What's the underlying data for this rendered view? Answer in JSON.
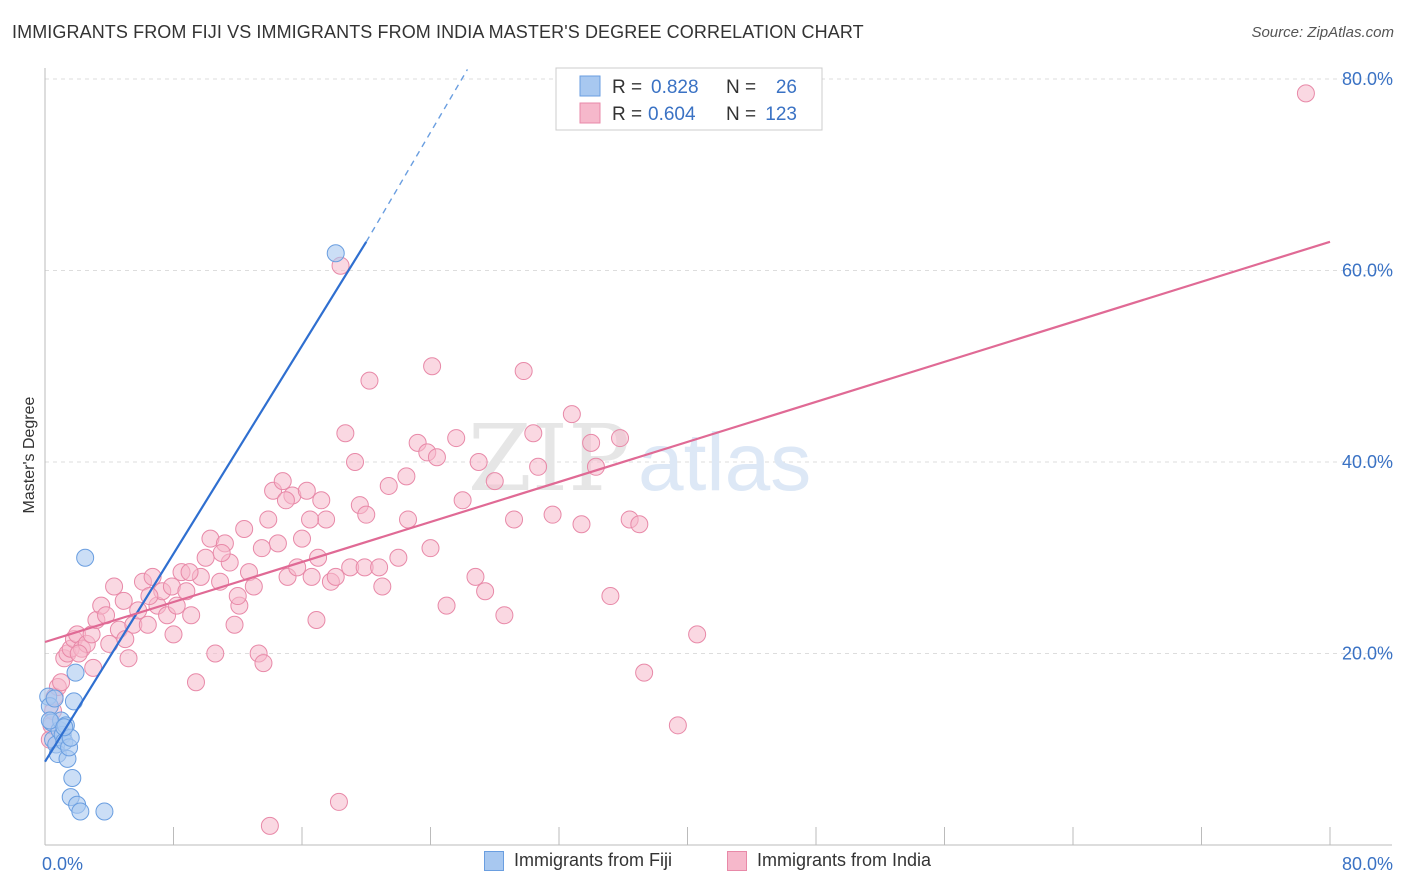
{
  "title": "IMMIGRANTS FROM FIJI VS IMMIGRANTS FROM INDIA MASTER'S DEGREE CORRELATION CHART",
  "source": "Source: ZipAtlas.com",
  "watermark": {
    "part1": "ZIP",
    "part2": "atlas"
  },
  "colors": {
    "fiji_fill": "#a8c8f0",
    "fiji_stroke": "#6a9ee0",
    "fiji_line": "#2f6fd0",
    "india_fill": "#f6b8cb",
    "india_stroke": "#e889a8",
    "india_line": "#e06a95",
    "value_text": "#3a72c4",
    "grid": "#dddddd"
  },
  "legend": {
    "rows": [
      {
        "r_label": "R =",
        "r_value": "0.828",
        "n_label": "N =",
        "n_value": "26",
        "series": "fiji"
      },
      {
        "r_label": "R =",
        "r_value": "0.604",
        "n_label": "N =",
        "n_value": "123",
        "series": "india"
      }
    ]
  },
  "chart_data": {
    "type": "scatter",
    "title": "IMMIGRANTS FROM FIJI VS IMMIGRANTS FROM INDIA MASTER'S DEGREE CORRELATION CHART",
    "xlabel": "",
    "ylabel": "Master's Degree",
    "xlim": [
      0,
      80
    ],
    "ylim": [
      0,
      80
    ],
    "x_tick_labels": [
      "0.0%",
      "80.0%"
    ],
    "y_ticks": [
      20,
      40,
      60,
      80
    ],
    "y_tick_labels": [
      "20.0%",
      "40.0%",
      "60.0%",
      "80.0%"
    ],
    "grid": true,
    "legend_position": "top-center",
    "series": [
      {
        "name": "Immigrants from Fiji",
        "key": "fiji",
        "r": 0.828,
        "n": 26,
        "trend": {
          "x": [
            0,
            20.0
          ],
          "y": [
            8.7,
            63.0
          ],
          "dashed_to": [
            26.3,
            81.0
          ]
        },
        "points": [
          [
            0.2,
            15.5
          ],
          [
            0.3,
            14.5
          ],
          [
            0.4,
            12.8
          ],
          [
            0.5,
            11.0
          ],
          [
            0.6,
            15.3
          ],
          [
            0.7,
            10.5
          ],
          [
            0.8,
            9.5
          ],
          [
            0.9,
            12.0
          ],
          [
            1.0,
            13.0
          ],
          [
            1.1,
            11.5
          ],
          [
            1.2,
            10.8
          ],
          [
            1.3,
            12.5
          ],
          [
            1.4,
            9.0
          ],
          [
            1.5,
            10.2
          ],
          [
            1.6,
            11.2
          ],
          [
            1.7,
            7.0
          ],
          [
            1.8,
            15.0
          ],
          [
            1.9,
            18.0
          ],
          [
            1.6,
            5.0
          ],
          [
            2.0,
            4.2
          ],
          [
            2.2,
            3.5
          ],
          [
            2.5,
            30.0
          ],
          [
            3.7,
            3.5
          ],
          [
            18.1,
            61.8
          ],
          [
            0.3,
            13.0
          ],
          [
            1.2,
            12.3
          ]
        ]
      },
      {
        "name": "Immigrants from India",
        "key": "india",
        "r": 0.604,
        "n": 123,
        "trend": {
          "x": [
            0,
            80.0
          ],
          "y": [
            21.2,
            63.0
          ]
        },
        "points": [
          [
            0.3,
            11.0
          ],
          [
            0.4,
            12.5
          ],
          [
            0.5,
            14.0
          ],
          [
            0.6,
            15.5
          ],
          [
            0.8,
            16.5
          ],
          [
            1.0,
            17.0
          ],
          [
            1.2,
            19.5
          ],
          [
            1.4,
            20.0
          ],
          [
            1.6,
            20.5
          ],
          [
            1.8,
            21.5
          ],
          [
            2.0,
            22.0
          ],
          [
            2.3,
            20.5
          ],
          [
            2.6,
            21.0
          ],
          [
            2.9,
            22.0
          ],
          [
            3.2,
            23.5
          ],
          [
            3.5,
            25.0
          ],
          [
            3.8,
            24.0
          ],
          [
            4.0,
            21.0
          ],
          [
            4.3,
            27.0
          ],
          [
            4.6,
            22.5
          ],
          [
            4.9,
            25.5
          ],
          [
            5.2,
            19.5
          ],
          [
            5.5,
            23.0
          ],
          [
            5.8,
            24.5
          ],
          [
            6.1,
            27.5
          ],
          [
            6.4,
            23.0
          ],
          [
            6.7,
            28.0
          ],
          [
            7.0,
            25.0
          ],
          [
            7.3,
            26.5
          ],
          [
            7.6,
            24.0
          ],
          [
            7.9,
            27.0
          ],
          [
            8.2,
            25.0
          ],
          [
            8.5,
            28.5
          ],
          [
            8.8,
            26.5
          ],
          [
            9.1,
            24.0
          ],
          [
            9.4,
            17.0
          ],
          [
            9.7,
            28.0
          ],
          [
            10.0,
            30.0
          ],
          [
            10.3,
            32.0
          ],
          [
            10.6,
            20.0
          ],
          [
            10.9,
            27.5
          ],
          [
            11.2,
            31.5
          ],
          [
            11.5,
            29.5
          ],
          [
            11.8,
            23.0
          ],
          [
            12.1,
            25.0
          ],
          [
            12.4,
            33.0
          ],
          [
            12.7,
            28.5
          ],
          [
            13.0,
            27.0
          ],
          [
            13.3,
            20.0
          ],
          [
            13.6,
            19.0
          ],
          [
            13.9,
            34.0
          ],
          [
            14.2,
            37.0
          ],
          [
            14.5,
            31.5
          ],
          [
            14.8,
            38.0
          ],
          [
            15.1,
            28.0
          ],
          [
            15.4,
            36.5
          ],
          [
            15.7,
            29.0
          ],
          [
            16.0,
            32.0
          ],
          [
            16.3,
            37.0
          ],
          [
            16.6,
            28.0
          ],
          [
            16.9,
            23.5
          ],
          [
            17.2,
            36.0
          ],
          [
            17.5,
            34.0
          ],
          [
            17.8,
            27.5
          ],
          [
            18.1,
            28.0
          ],
          [
            18.4,
            60.5
          ],
          [
            18.7,
            43.0
          ],
          [
            19.0,
            29.0
          ],
          [
            19.3,
            40.0
          ],
          [
            19.6,
            35.5
          ],
          [
            19.9,
            29.0
          ],
          [
            20.2,
            48.5
          ],
          [
            20.8,
            29.0
          ],
          [
            21.4,
            37.5
          ],
          [
            22.0,
            30.0
          ],
          [
            22.6,
            34.0
          ],
          [
            23.2,
            42.0
          ],
          [
            23.8,
            41.0
          ],
          [
            24.1,
            50.0
          ],
          [
            24.4,
            40.5
          ],
          [
            25.0,
            25.0
          ],
          [
            25.6,
            42.5
          ],
          [
            26.8,
            28.0
          ],
          [
            27.4,
            26.5
          ],
          [
            28.6,
            24.0
          ],
          [
            29.2,
            34.0
          ],
          [
            29.8,
            49.5
          ],
          [
            30.4,
            43.0
          ],
          [
            30.7,
            39.5
          ],
          [
            31.6,
            34.5
          ],
          [
            32.8,
            45.0
          ],
          [
            33.4,
            33.5
          ],
          [
            34.0,
            42.0
          ],
          [
            34.3,
            39.5
          ],
          [
            35.2,
            26.0
          ],
          [
            35.8,
            42.5
          ],
          [
            36.4,
            34.0
          ],
          [
            37.0,
            33.5
          ],
          [
            37.3,
            18.0
          ],
          [
            39.4,
            12.5
          ],
          [
            40.6,
            22.0
          ],
          [
            78.5,
            78.5
          ],
          [
            14.0,
            2.0
          ],
          [
            18.3,
            4.5
          ],
          [
            2.1,
            20.0
          ],
          [
            3.0,
            18.5
          ],
          [
            5.0,
            21.5
          ],
          [
            6.5,
            26.0
          ],
          [
            8.0,
            22.0
          ],
          [
            9.0,
            28.5
          ],
          [
            11.0,
            30.5
          ],
          [
            12.0,
            26.0
          ],
          [
            13.5,
            31.0
          ],
          [
            15.0,
            36.0
          ],
          [
            16.5,
            34.0
          ],
          [
            17.0,
            30.0
          ],
          [
            20.0,
            34.5
          ],
          [
            21.0,
            27.0
          ],
          [
            22.5,
            38.5
          ],
          [
            24.0,
            31.0
          ],
          [
            26.0,
            36.0
          ],
          [
            27.0,
            40.0
          ],
          [
            28.0,
            38.0
          ]
        ]
      }
    ]
  },
  "bottom_legend": [
    {
      "label": "Immigrants from Fiji",
      "series": "fiji"
    },
    {
      "label": "Immigrants from India",
      "series": "india"
    }
  ]
}
